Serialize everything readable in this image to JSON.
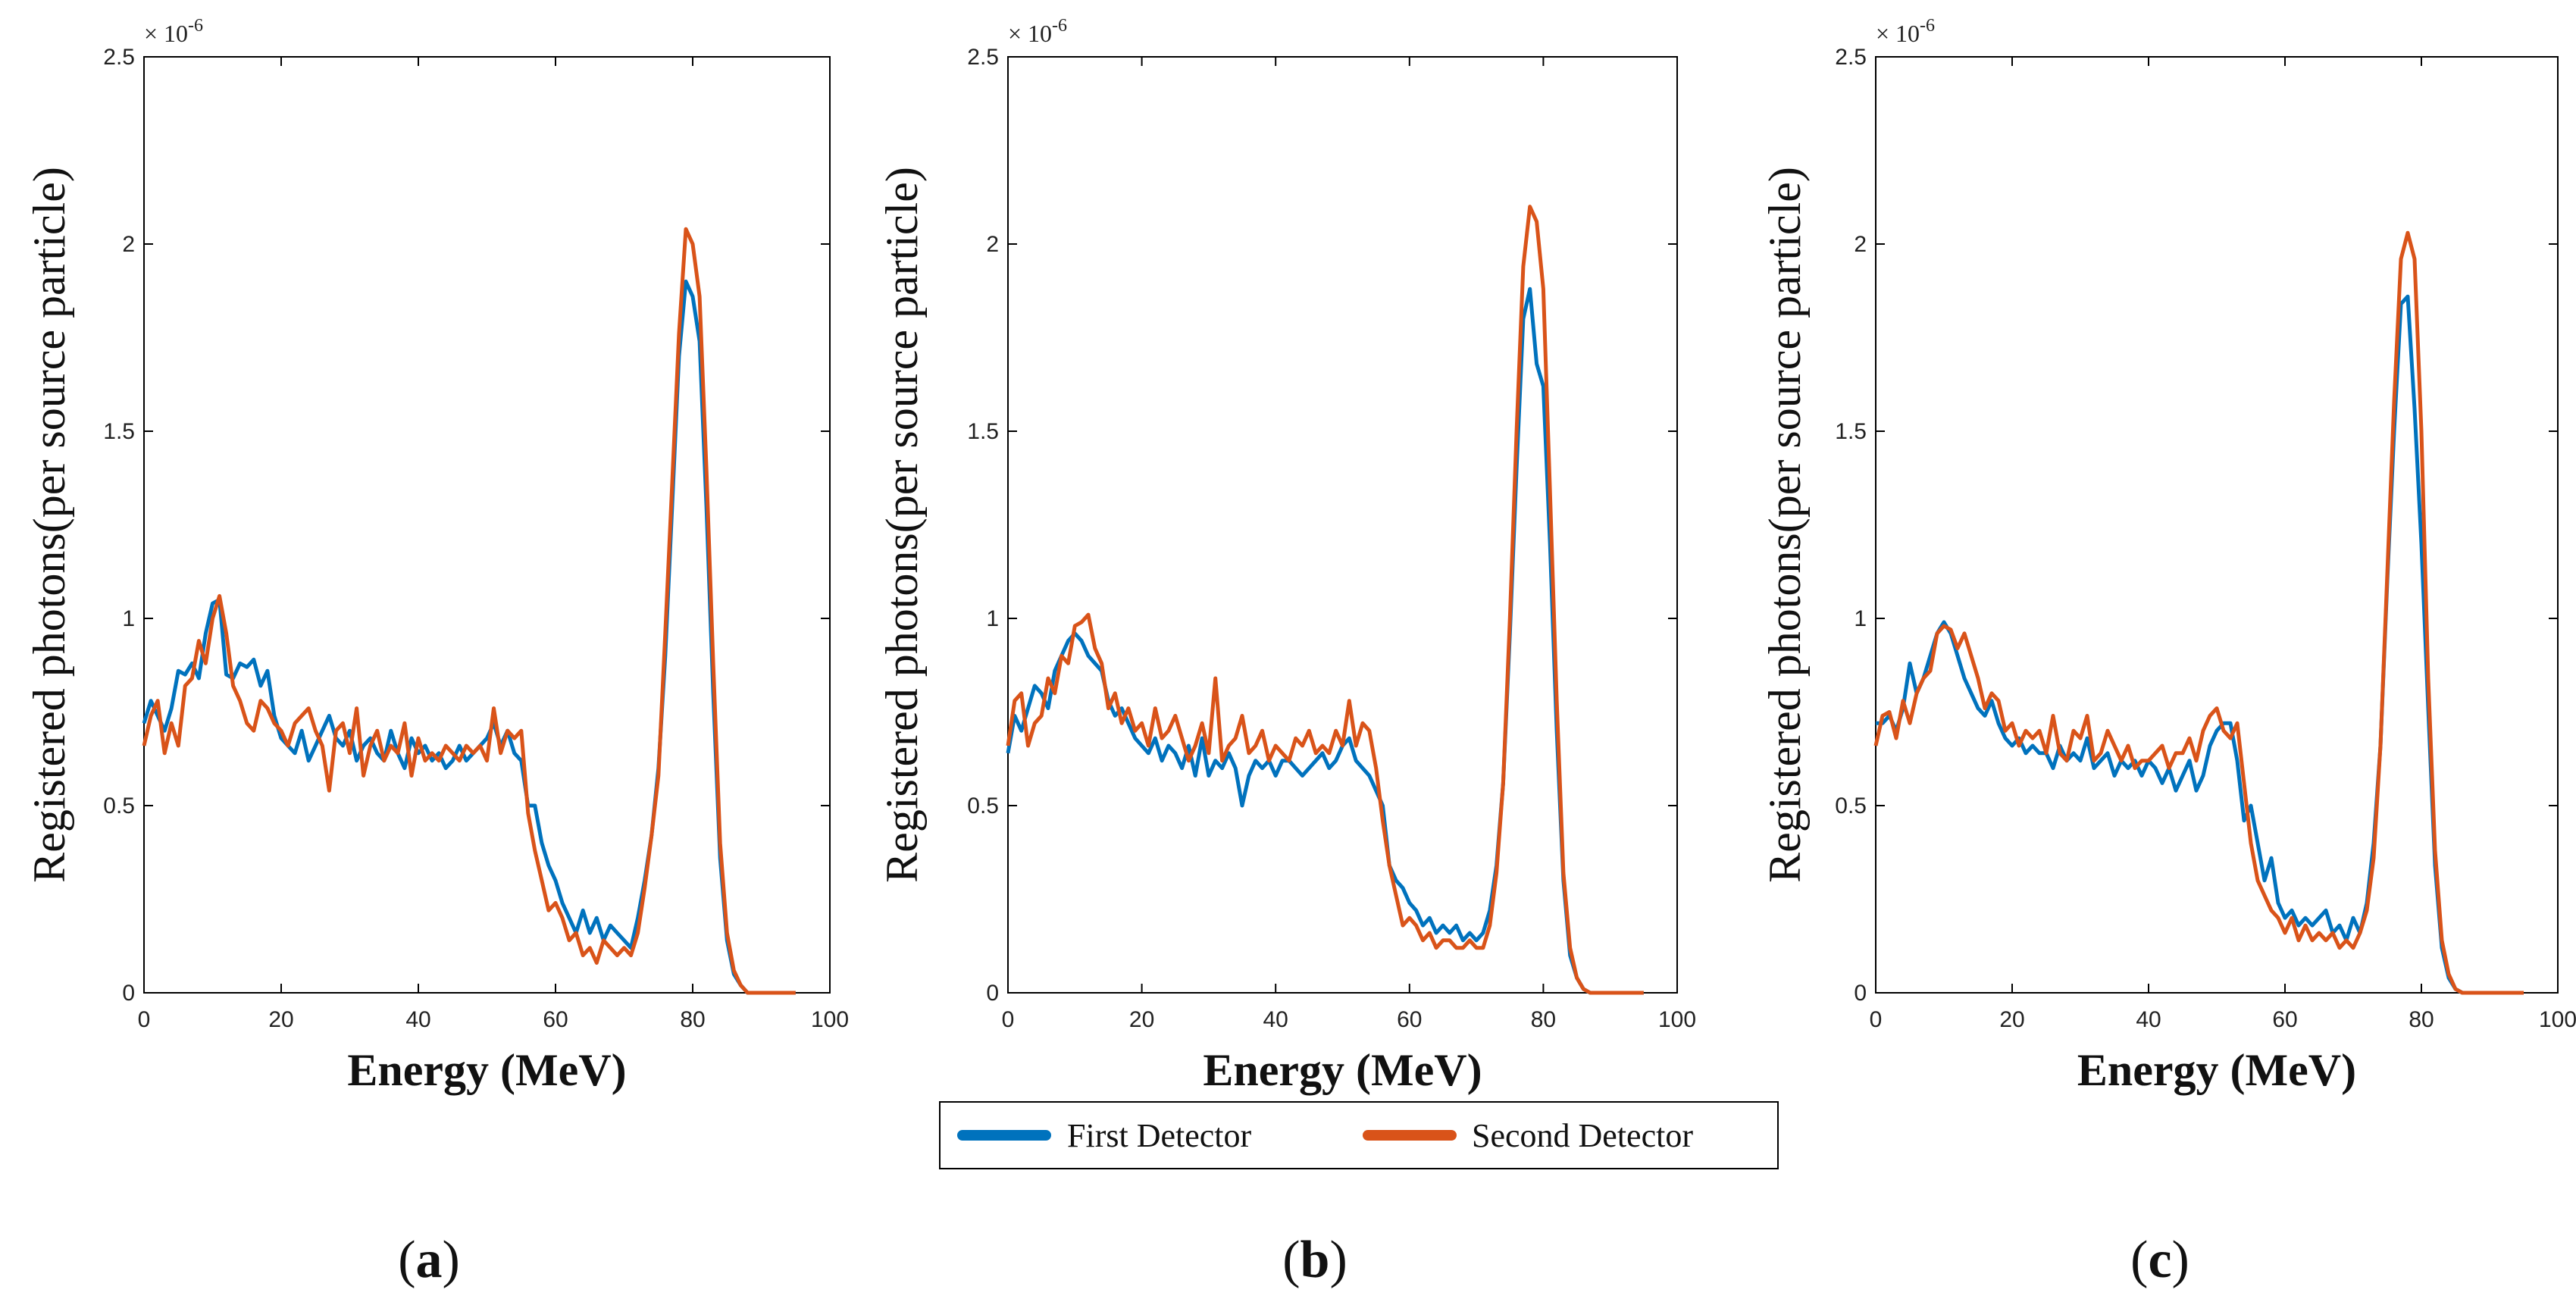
{
  "colors": {
    "first": "#0072BD",
    "second": "#D95319"
  },
  "legend": {
    "first": "First Detector",
    "second": "Second Detector"
  },
  "chart_data": [
    {
      "type": "line",
      "panel_label": "a",
      "xlabel": "Energy (MeV)",
      "ylabel": "Registered photons(per source particle)",
      "exponent_base": "× 10",
      "exponent_power": "-6",
      "xlim": [
        0,
        100
      ],
      "ylim": [
        0,
        2.5
      ],
      "xticks": [
        "0",
        "20",
        "40",
        "60",
        "80",
        "100"
      ],
      "yticks": [
        "0",
        "0.5",
        "1",
        "1.5",
        "2",
        "2.5"
      ],
      "x": [
        0,
        1,
        2,
        3,
        4,
        5,
        6,
        7,
        8,
        9,
        10,
        11,
        12,
        13,
        14,
        15,
        16,
        17,
        18,
        19,
        20,
        21,
        22,
        23,
        24,
        25,
        26,
        27,
        28,
        29,
        30,
        31,
        32,
        33,
        34,
        35,
        36,
        37,
        38,
        39,
        40,
        41,
        42,
        43,
        44,
        45,
        46,
        47,
        48,
        49,
        50,
        51,
        52,
        53,
        54,
        55,
        56,
        57,
        58,
        59,
        60,
        61,
        62,
        63,
        64,
        65,
        66,
        67,
        68,
        69,
        70,
        71,
        72,
        73,
        74,
        75,
        76,
        77,
        78,
        79,
        80,
        81,
        82,
        83,
        84,
        85,
        86,
        87,
        88,
        89,
        90,
        91,
        92,
        93,
        94,
        95
      ],
      "series": [
        {
          "name": "First Detector",
          "values": [
            0.72,
            0.78,
            0.74,
            0.7,
            0.76,
            0.86,
            0.85,
            0.88,
            0.84,
            0.96,
            1.04,
            1.05,
            0.85,
            0.84,
            0.88,
            0.87,
            0.89,
            0.82,
            0.86,
            0.74,
            0.68,
            0.66,
            0.64,
            0.7,
            0.62,
            0.66,
            0.7,
            0.74,
            0.68,
            0.66,
            0.7,
            0.62,
            0.66,
            0.68,
            0.64,
            0.62,
            0.7,
            0.64,
            0.6,
            0.68,
            0.64,
            0.66,
            0.62,
            0.64,
            0.6,
            0.62,
            0.66,
            0.62,
            0.64,
            0.66,
            0.68,
            0.72,
            0.66,
            0.7,
            0.64,
            0.62,
            0.5,
            0.5,
            0.4,
            0.34,
            0.3,
            0.24,
            0.2,
            0.16,
            0.22,
            0.16,
            0.2,
            0.14,
            0.18,
            0.16,
            0.14,
            0.12,
            0.2,
            0.3,
            0.42,
            0.6,
            0.9,
            1.3,
            1.7,
            1.9,
            1.86,
            1.74,
            1.3,
            0.8,
            0.36,
            0.14,
            0.05,
            0.02,
            0.0,
            0.0,
            0.0,
            0.0,
            0.0,
            0.0,
            0.0,
            0.0
          ]
        },
        {
          "name": "Second Detector",
          "values": [
            0.66,
            0.74,
            0.78,
            0.64,
            0.72,
            0.66,
            0.82,
            0.84,
            0.94,
            0.88,
            1.0,
            1.06,
            0.96,
            0.82,
            0.78,
            0.72,
            0.7,
            0.78,
            0.76,
            0.72,
            0.7,
            0.66,
            0.72,
            0.74,
            0.76,
            0.7,
            0.66,
            0.54,
            0.7,
            0.72,
            0.64,
            0.76,
            0.58,
            0.66,
            0.7,
            0.62,
            0.66,
            0.64,
            0.72,
            0.58,
            0.68,
            0.62,
            0.64,
            0.62,
            0.66,
            0.64,
            0.62,
            0.66,
            0.64,
            0.66,
            0.62,
            0.76,
            0.64,
            0.7,
            0.68,
            0.7,
            0.48,
            0.38,
            0.3,
            0.22,
            0.24,
            0.2,
            0.14,
            0.16,
            0.1,
            0.12,
            0.08,
            0.14,
            0.12,
            0.1,
            0.12,
            0.1,
            0.16,
            0.28,
            0.42,
            0.58,
            0.96,
            1.36,
            1.76,
            2.04,
            2.0,
            1.86,
            1.4,
            0.88,
            0.4,
            0.16,
            0.06,
            0.02,
            0.0,
            0.0,
            0.0,
            0.0,
            0.0,
            0.0,
            0.0,
            0.0
          ]
        }
      ]
    },
    {
      "type": "line",
      "panel_label": "b",
      "xlabel": "Energy (MeV)",
      "ylabel": "Registered photons(per source particle)",
      "exponent_base": "× 10",
      "exponent_power": "-6",
      "xlim": [
        0,
        100
      ],
      "ylim": [
        0,
        2.5
      ],
      "xticks": [
        "0",
        "20",
        "40",
        "60",
        "80",
        "100"
      ],
      "yticks": [
        "0",
        "0.5",
        "1",
        "1.5",
        "2",
        "2.5"
      ],
      "x": [
        0,
        1,
        2,
        3,
        4,
        5,
        6,
        7,
        8,
        9,
        10,
        11,
        12,
        13,
        14,
        15,
        16,
        17,
        18,
        19,
        20,
        21,
        22,
        23,
        24,
        25,
        26,
        27,
        28,
        29,
        30,
        31,
        32,
        33,
        34,
        35,
        36,
        37,
        38,
        39,
        40,
        41,
        42,
        43,
        44,
        45,
        46,
        47,
        48,
        49,
        50,
        51,
        52,
        53,
        54,
        55,
        56,
        57,
        58,
        59,
        60,
        61,
        62,
        63,
        64,
        65,
        66,
        67,
        68,
        69,
        70,
        71,
        72,
        73,
        74,
        75,
        76,
        77,
        78,
        79,
        80,
        81,
        82,
        83,
        84,
        85,
        86,
        87,
        88,
        89,
        90,
        91,
        92,
        93,
        94,
        95
      ],
      "series": [
        {
          "name": "First Detector",
          "values": [
            0.64,
            0.74,
            0.7,
            0.76,
            0.82,
            0.8,
            0.76,
            0.86,
            0.9,
            0.94,
            0.96,
            0.94,
            0.9,
            0.88,
            0.86,
            0.78,
            0.74,
            0.76,
            0.72,
            0.68,
            0.66,
            0.64,
            0.68,
            0.62,
            0.66,
            0.64,
            0.6,
            0.66,
            0.58,
            0.68,
            0.58,
            0.62,
            0.6,
            0.64,
            0.6,
            0.5,
            0.58,
            0.62,
            0.6,
            0.62,
            0.58,
            0.62,
            0.62,
            0.6,
            0.58,
            0.6,
            0.62,
            0.64,
            0.6,
            0.62,
            0.66,
            0.68,
            0.62,
            0.6,
            0.58,
            0.54,
            0.5,
            0.34,
            0.3,
            0.28,
            0.24,
            0.22,
            0.18,
            0.2,
            0.16,
            0.18,
            0.16,
            0.18,
            0.14,
            0.16,
            0.14,
            0.16,
            0.22,
            0.34,
            0.56,
            0.96,
            1.4,
            1.8,
            1.88,
            1.68,
            1.62,
            1.2,
            0.7,
            0.3,
            0.1,
            0.04,
            0.01,
            0.0,
            0.0,
            0.0,
            0.0,
            0.0,
            0.0,
            0.0,
            0.0,
            0.0
          ]
        },
        {
          "name": "Second Detector",
          "values": [
            0.66,
            0.78,
            0.8,
            0.66,
            0.72,
            0.74,
            0.84,
            0.8,
            0.9,
            0.88,
            0.98,
            0.99,
            1.01,
            0.92,
            0.88,
            0.76,
            0.8,
            0.72,
            0.76,
            0.7,
            0.72,
            0.66,
            0.76,
            0.68,
            0.7,
            0.74,
            0.68,
            0.62,
            0.66,
            0.72,
            0.64,
            0.84,
            0.62,
            0.66,
            0.68,
            0.74,
            0.64,
            0.66,
            0.7,
            0.62,
            0.66,
            0.64,
            0.62,
            0.68,
            0.66,
            0.7,
            0.64,
            0.66,
            0.64,
            0.7,
            0.66,
            0.78,
            0.66,
            0.72,
            0.7,
            0.6,
            0.46,
            0.34,
            0.26,
            0.18,
            0.2,
            0.18,
            0.14,
            0.16,
            0.12,
            0.14,
            0.14,
            0.12,
            0.12,
            0.14,
            0.12,
            0.12,
            0.18,
            0.32,
            0.56,
            1.0,
            1.5,
            1.94,
            2.1,
            2.06,
            1.88,
            1.34,
            0.78,
            0.32,
            0.12,
            0.04,
            0.01,
            0.0,
            0.0,
            0.0,
            0.0,
            0.0,
            0.0,
            0.0,
            0.0,
            0.0
          ]
        }
      ]
    },
    {
      "type": "line",
      "panel_label": "c",
      "xlabel": "Energy (MeV)",
      "ylabel": "Registered photons(per source particle)",
      "exponent_base": "× 10",
      "exponent_power": "-6",
      "xlim": [
        0,
        100
      ],
      "ylim": [
        0,
        2.5
      ],
      "xticks": [
        "0",
        "20",
        "40",
        "60",
        "80",
        "100"
      ],
      "yticks": [
        "0",
        "0.5",
        "1",
        "1.5",
        "2",
        "2.5"
      ],
      "x": [
        0,
        1,
        2,
        3,
        4,
        5,
        6,
        7,
        8,
        9,
        10,
        11,
        12,
        13,
        14,
        15,
        16,
        17,
        18,
        19,
        20,
        21,
        22,
        23,
        24,
        25,
        26,
        27,
        28,
        29,
        30,
        31,
        32,
        33,
        34,
        35,
        36,
        37,
        38,
        39,
        40,
        41,
        42,
        43,
        44,
        45,
        46,
        47,
        48,
        49,
        50,
        51,
        52,
        53,
        54,
        55,
        56,
        57,
        58,
        59,
        60,
        61,
        62,
        63,
        64,
        65,
        66,
        67,
        68,
        69,
        70,
        71,
        72,
        73,
        74,
        75,
        76,
        77,
        78,
        79,
        80,
        81,
        82,
        83,
        84,
        85,
        86,
        87,
        88,
        89,
        90,
        91,
        92,
        93,
        94,
        95
      ],
      "series": [
        {
          "name": "First Detector",
          "values": [
            0.72,
            0.72,
            0.74,
            0.7,
            0.76,
            0.88,
            0.8,
            0.84,
            0.9,
            0.96,
            0.99,
            0.96,
            0.9,
            0.84,
            0.8,
            0.76,
            0.74,
            0.78,
            0.72,
            0.68,
            0.66,
            0.68,
            0.64,
            0.66,
            0.64,
            0.64,
            0.6,
            0.66,
            0.62,
            0.64,
            0.62,
            0.68,
            0.6,
            0.62,
            0.64,
            0.58,
            0.62,
            0.6,
            0.62,
            0.58,
            0.62,
            0.6,
            0.56,
            0.6,
            0.54,
            0.58,
            0.62,
            0.54,
            0.58,
            0.66,
            0.7,
            0.72,
            0.72,
            0.62,
            0.46,
            0.5,
            0.4,
            0.3,
            0.36,
            0.24,
            0.2,
            0.22,
            0.18,
            0.2,
            0.18,
            0.2,
            0.22,
            0.16,
            0.18,
            0.14,
            0.2,
            0.16,
            0.24,
            0.4,
            0.66,
            1.1,
            1.5,
            1.84,
            1.86,
            1.56,
            1.2,
            0.76,
            0.34,
            0.12,
            0.04,
            0.01,
            0.0,
            0.0,
            0.0,
            0.0,
            0.0,
            0.0,
            0.0,
            0.0,
            0.0,
            0.0
          ]
        },
        {
          "name": "Second Detector",
          "values": [
            0.66,
            0.74,
            0.75,
            0.68,
            0.78,
            0.72,
            0.8,
            0.84,
            0.86,
            0.96,
            0.98,
            0.97,
            0.92,
            0.96,
            0.9,
            0.84,
            0.76,
            0.8,
            0.78,
            0.7,
            0.72,
            0.66,
            0.7,
            0.68,
            0.7,
            0.64,
            0.74,
            0.64,
            0.62,
            0.7,
            0.68,
            0.74,
            0.62,
            0.64,
            0.7,
            0.66,
            0.62,
            0.66,
            0.6,
            0.62,
            0.62,
            0.64,
            0.66,
            0.6,
            0.64,
            0.64,
            0.68,
            0.62,
            0.7,
            0.74,
            0.76,
            0.7,
            0.68,
            0.72,
            0.56,
            0.4,
            0.3,
            0.26,
            0.22,
            0.2,
            0.16,
            0.2,
            0.14,
            0.18,
            0.14,
            0.16,
            0.14,
            0.16,
            0.12,
            0.14,
            0.12,
            0.16,
            0.22,
            0.36,
            0.66,
            1.12,
            1.58,
            1.96,
            2.03,
            1.96,
            1.5,
            0.84,
            0.38,
            0.14,
            0.05,
            0.01,
            0.0,
            0.0,
            0.0,
            0.0,
            0.0,
            0.0,
            0.0,
            0.0,
            0.0,
            0.0
          ]
        }
      ]
    }
  ]
}
